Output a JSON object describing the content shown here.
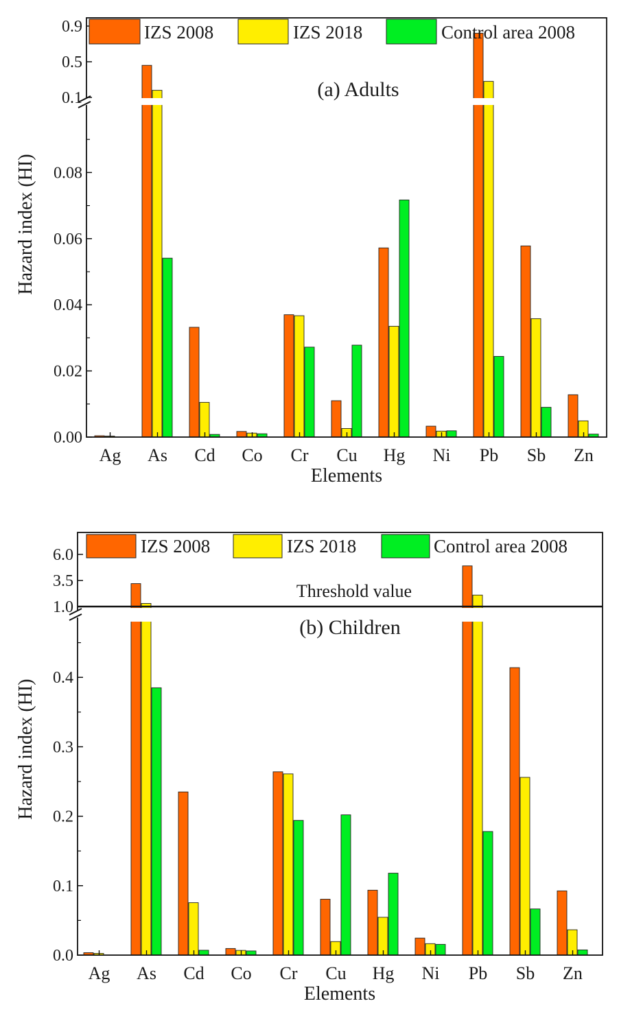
{
  "chart_data": [
    {
      "type": "bar",
      "panel_title": "(a) Adults",
      "xlabel": "Elements",
      "ylabel": "Hazard index (HI)",
      "categories": [
        "Ag",
        "As",
        "Cd",
        "Co",
        "Cr",
        "Cu",
        "Hg",
        "Ni",
        "Pb",
        "Sb",
        "Zn"
      ],
      "series": [
        {
          "name": "IZS 2008",
          "color": "#ff6600",
          "values": [
            0.0004,
            0.46,
            0.0332,
            0.0017,
            0.037,
            0.011,
            0.0572,
            0.0033,
            0.82,
            0.0578,
            0.0128
          ]
        },
        {
          "name": "IZS 2018",
          "color": "#ffee00",
          "values": [
            0.0003,
            0.18,
            0.0105,
            0.0012,
            0.0367,
            0.0026,
            0.0335,
            0.0018,
            0.28,
            0.0358,
            0.0049
          ]
        },
        {
          "name": "Control area 2008",
          "color": "#00ee22",
          "values": [
            0.0,
            0.0541,
            0.0008,
            0.001,
            0.0272,
            0.0278,
            0.0717,
            0.0019,
            0.0244,
            0.009,
            0.0009
          ]
        }
      ],
      "y_axis_break": true,
      "lower_ylim": [
        0,
        0.1
      ],
      "lower_yticks": [
        "0.00",
        "0.02",
        "0.04",
        "0.06",
        "0.08"
      ],
      "upper_ylim": [
        0.1,
        0.9
      ],
      "upper_yticks": [
        "0.1",
        "0.5",
        "0.9"
      ],
      "legend_position": "top",
      "grid": false
    },
    {
      "type": "bar",
      "panel_title": "(b) Children",
      "xlabel": "Elements",
      "ylabel": "Hazard index (HI)",
      "categories": [
        "Ag",
        "As",
        "Cd",
        "Co",
        "Cr",
        "Cu",
        "Hg",
        "Ni",
        "Pb",
        "Sb",
        "Zn"
      ],
      "series": [
        {
          "name": "IZS 2008",
          "color": "#ff6600",
          "values": [
            0.0035,
            3.2,
            0.235,
            0.0095,
            0.264,
            0.0805,
            0.0935,
            0.0245,
            4.9,
            0.414,
            0.0925
          ]
        },
        {
          "name": "IZS 2018",
          "color": "#ffee00",
          "values": [
            0.0025,
            1.3,
            0.0755,
            0.0068,
            0.261,
            0.0195,
            0.0545,
            0.0165,
            2.1,
            0.256,
            0.0365
          ]
        },
        {
          "name": "Control area 2008",
          "color": "#00ee22",
          "values": [
            0.0,
            0.385,
            0.007,
            0.006,
            0.194,
            0.202,
            0.118,
            0.0155,
            0.178,
            0.0665,
            0.0075
          ]
        }
      ],
      "y_axis_break": true,
      "lower_ylim": [
        0,
        0.5
      ],
      "lower_yticks": [
        "0.0",
        "0.1",
        "0.2",
        "0.3",
        "0.4"
      ],
      "upper_ylim": [
        1.0,
        6.0
      ],
      "upper_yticks": [
        "1.0",
        "3.5",
        "6.0"
      ],
      "threshold": {
        "value": 1.0,
        "label": "Threshold value"
      },
      "legend_position": "top",
      "grid": false
    }
  ]
}
